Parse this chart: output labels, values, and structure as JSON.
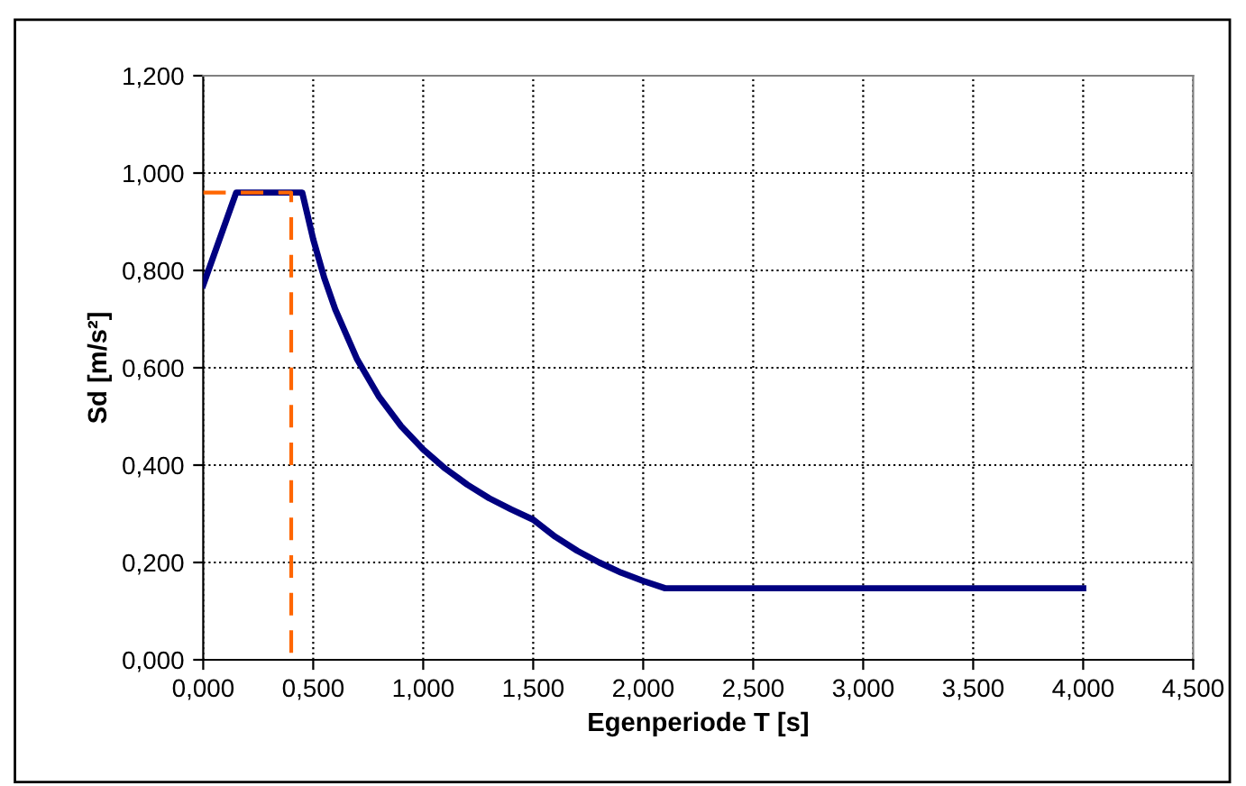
{
  "chart_data": {
    "type": "line",
    "xlabel": "Egenperiode T [s]",
    "ylabel": "Sd [m/s²]",
    "grid": true,
    "legend": false,
    "marker": "none",
    "xlim": [
      0,
      4.5
    ],
    "ylim": [
      0,
      1.2
    ],
    "xticks": [
      {
        "value": 0,
        "label": "0,000"
      },
      {
        "value": 0.5,
        "label": "0,500"
      },
      {
        "value": 1,
        "label": "1,000"
      },
      {
        "value": 1.5,
        "label": "1,500"
      },
      {
        "value": 2,
        "label": "2,000"
      },
      {
        "value": 2.5,
        "label": "2,500"
      },
      {
        "value": 3,
        "label": "3,000"
      },
      {
        "value": 3.5,
        "label": "3,500"
      },
      {
        "value": 4,
        "label": "4,000"
      },
      {
        "value": 4.5,
        "label": "4,500"
      }
    ],
    "yticks": [
      {
        "value": 0,
        "label": "0,000"
      },
      {
        "value": 0.2,
        "label": "0,200"
      },
      {
        "value": 0.4,
        "label": "0,400"
      },
      {
        "value": 0.6,
        "label": "0,600"
      },
      {
        "value": 0.8,
        "label": "0,800"
      },
      {
        "value": 1,
        "label": "1,000"
      },
      {
        "value": 1.2,
        "label": "1,200"
      }
    ],
    "series": [
      {
        "color": "#000080",
        "line_style": "solid",
        "x": [
          0,
          0.15,
          0.45,
          0.5,
          0.55,
          0.6,
          0.7,
          0.8,
          0.9,
          1.0,
          1.1,
          1.2,
          1.3,
          1.4,
          1.5,
          1.6,
          1.7,
          1.8,
          1.9,
          2.0,
          2.1,
          4.0
        ],
        "values": [
          0.77,
          0.96,
          0.96,
          0.864,
          0.785,
          0.72,
          0.617,
          0.54,
          0.48,
          0.432,
          0.393,
          0.36,
          0.332,
          0.309,
          0.288,
          0.253,
          0.224,
          0.2,
          0.179,
          0.162,
          0.147,
          0.147
        ]
      },
      {
        "color": "#ff6600",
        "line_style": "dashed",
        "x": [
          0,
          0.4,
          0.4
        ],
        "values": [
          0.96,
          0.96,
          0
        ]
      }
    ]
  }
}
